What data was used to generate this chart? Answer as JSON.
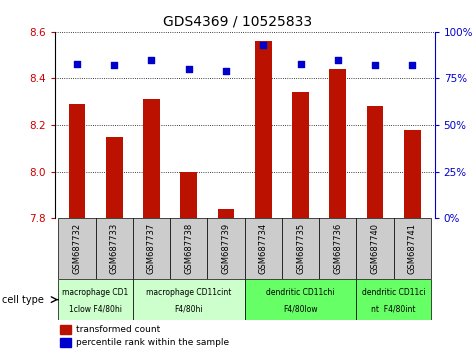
{
  "title": "GDS4369 / 10525833",
  "samples": [
    "GSM687732",
    "GSM687733",
    "GSM687737",
    "GSM687738",
    "GSM687739",
    "GSM687734",
    "GSM687735",
    "GSM687736",
    "GSM687740",
    "GSM687741"
  ],
  "transformed_counts": [
    8.29,
    8.15,
    8.31,
    8.0,
    7.84,
    8.56,
    8.34,
    8.44,
    8.28,
    8.18
  ],
  "percentile_ranks": [
    83,
    82,
    85,
    80,
    79,
    93,
    83,
    85,
    82,
    82
  ],
  "ylim_left": [
    7.8,
    8.6
  ],
  "ylim_right": [
    0,
    100
  ],
  "yticks_left": [
    7.8,
    8.0,
    8.2,
    8.4,
    8.6
  ],
  "yticks_right": [
    0,
    25,
    50,
    75,
    100
  ],
  "bar_color": "#bb1100",
  "dot_color": "#0000cc",
  "cell_types": [
    {
      "label": "macrophage CD1\n1clow F4/80hi",
      "start": 0,
      "end": 2,
      "color": "#ccffcc"
    },
    {
      "label": "macrophage CD11cint\nF4/80hi",
      "start": 2,
      "end": 5,
      "color": "#ccffcc"
    },
    {
      "label": "dendritic CD11chi\nF4/80low",
      "start": 5,
      "end": 8,
      "color": "#66ff66"
    },
    {
      "label": "dendritic CD11ci\nnt  F4/80int",
      "start": 8,
      "end": 10,
      "color": "#66ff66"
    }
  ],
  "bar_width": 0.45,
  "tick_label_color_left": "#cc0000",
  "tick_label_color_right": "#0000cc",
  "bg_color": "#ffffff",
  "sample_bg_color": "#cccccc",
  "plot_bg_color": "#f0f0f0"
}
